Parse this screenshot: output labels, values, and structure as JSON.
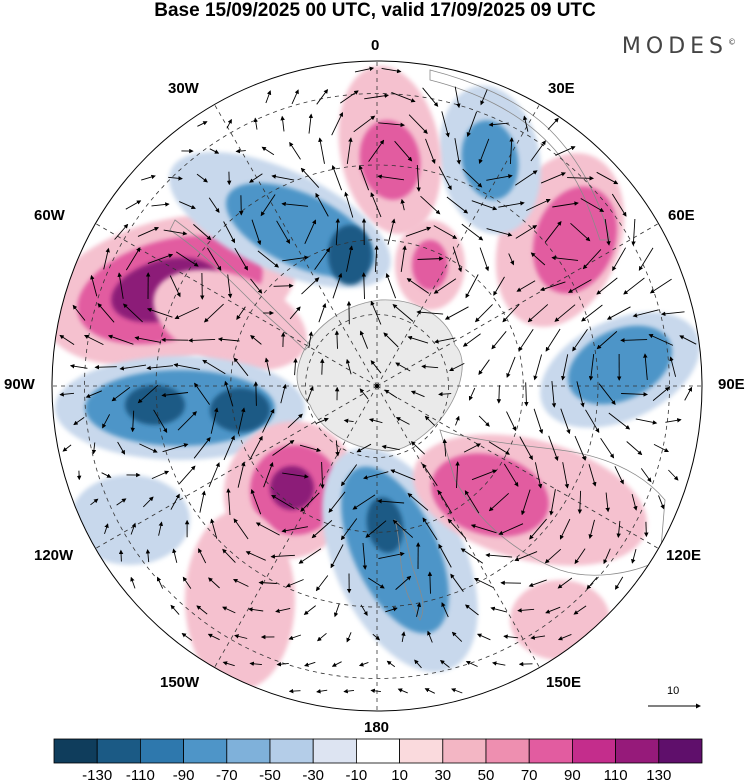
{
  "header": {
    "title": "Base 15/09/2025 00 UTC, valid 17/09/2025 09 UTC",
    "brand": "MODES",
    "brand_mark": "©"
  },
  "map": {
    "projection": "polar stereographic (south pole)",
    "longitude_labels": [
      "0",
      "30E",
      "60E",
      "90E",
      "120E",
      "150E",
      "180",
      "150W",
      "120W",
      "90W",
      "60W",
      "30W"
    ],
    "vector_scale_label": "10"
  },
  "colorbar": {
    "tick_labels": [
      "-130",
      "-110",
      "-90",
      "-70",
      "-50",
      "-30",
      "-10",
      "10",
      "30",
      "50",
      "70",
      "90",
      "110",
      "130"
    ],
    "colors": [
      "#0f3d5c",
      "#1b5a85",
      "#2e78ad",
      "#4e95c8",
      "#7fb1da",
      "#b4cde8",
      "#dde4f2",
      "#ffffff",
      "#fadadd",
      "#f3b6c4",
      "#ee8fb0",
      "#e25ca0",
      "#c42d8c",
      "#961a7a",
      "#5f0f6b"
    ]
  },
  "anomaly_colors": {
    "strong_positive": "#8c1a78",
    "positive": "#e25ca0",
    "weak_positive": "#f5c1cf",
    "strong_negative": "#1b5a85",
    "negative": "#4e95c8",
    "weak_negative": "#c8d8ec",
    "land_outline": "#8a8a8a",
    "antarctica": "#e8e8e8"
  }
}
